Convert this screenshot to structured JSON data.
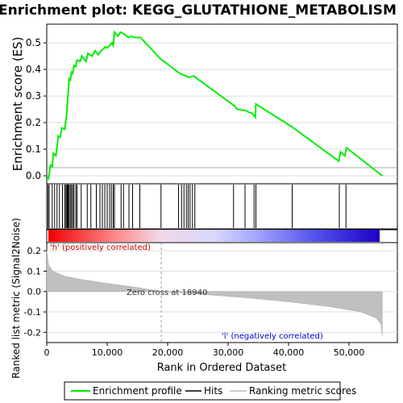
{
  "chart_data": {
    "type": "line",
    "title": "Enrichment plot: KEGG_GLUTATHIONE_METABOLISM",
    "xlabel": "Rank in Ordered Dataset",
    "xlim": [
      0,
      58000
    ],
    "x_ticks": [
      "0",
      "10,000",
      "20,000",
      "30,000",
      "40,000",
      "50,000"
    ],
    "panels": {
      "enrichment": {
        "ylabel": "Enrichment score (ES)",
        "ylim": [
          -0.03,
          0.57
        ],
        "y_ticks": [
          "0.0",
          "0.1",
          "0.2",
          "0.3",
          "0.4",
          "0.5"
        ],
        "series": [
          {
            "name": "Enrichment profile",
            "color": "#00ee00",
            "points": [
              [
                0,
                0
              ],
              [
                300,
                -0.01
              ],
              [
                600,
                0.04
              ],
              [
                900,
                0.035
              ],
              [
                1100,
                0.085
              ],
              [
                1500,
                0.075
              ],
              [
                1700,
                0.11
              ],
              [
                1900,
                0.15
              ],
              [
                2200,
                0.145
              ],
              [
                2500,
                0.18
              ],
              [
                3000,
                0.175
              ],
              [
                3100,
                0.2
              ],
              [
                3300,
                0.23
              ],
              [
                3400,
                0.27
              ],
              [
                3500,
                0.3
              ],
              [
                3600,
                0.33
              ],
              [
                3700,
                0.365
              ],
              [
                3900,
                0.36
              ],
              [
                4100,
                0.39
              ],
              [
                4300,
                0.385
              ],
              [
                4500,
                0.415
              ],
              [
                4800,
                0.41
              ],
              [
                5000,
                0.435
              ],
              [
                5500,
                0.43
              ],
              [
                5800,
                0.45
              ],
              [
                6500,
                0.43
              ],
              [
                6800,
                0.46
              ],
              [
                7500,
                0.45
              ],
              [
                8000,
                0.47
              ],
              [
                8500,
                0.455
              ],
              [
                9000,
                0.47
              ],
              [
                9300,
                0.475
              ],
              [
                9700,
                0.485
              ],
              [
                10000,
                0.48
              ],
              [
                10400,
                0.49
              ],
              [
                10800,
                0.5
              ],
              [
                11000,
                0.49
              ],
              [
                11200,
                0.54
              ],
              [
                11800,
                0.525
              ],
              [
                12200,
                0.54
              ],
              [
                13000,
                0.53
              ],
              [
                13500,
                0.52
              ],
              [
                14000,
                0.525
              ],
              [
                14500,
                0.52
              ],
              [
                15500,
                0.52
              ],
              [
                18800,
                0.44
              ],
              [
                22000,
                0.385
              ],
              [
                23500,
                0.37
              ],
              [
                24300,
                0.375
              ],
              [
                30900,
                0.265
              ],
              [
                31500,
                0.25
              ],
              [
                33000,
                0.245
              ],
              [
                33300,
                0.24
              ],
              [
                34000,
                0.235
              ],
              [
                34500,
                0.22
              ],
              [
                34600,
                0.27
              ],
              [
                40500,
                0.185
              ],
              [
                48300,
                0.055
              ],
              [
                48600,
                0.09
              ],
              [
                49300,
                0.075
              ],
              [
                49600,
                0.105
              ],
              [
                55500,
                0
              ]
            ]
          }
        ],
        "hits": [
          200,
          400,
          900,
          1300,
          1700,
          2100,
          2600,
          3000,
          3200,
          3350,
          3450,
          3550,
          3700,
          3900,
          4100,
          4300,
          4500,
          4800,
          5000,
          5700,
          6700,
          7300,
          8200,
          8800,
          9200,
          9600,
          10000,
          10400,
          10700,
          11000,
          11200,
          12300,
          12700,
          13600,
          14200,
          15400,
          18900,
          21800,
          22300,
          22700,
          23100,
          23400,
          23700,
          24100,
          24500,
          30900,
          32800,
          34300,
          34600,
          40600,
          48400,
          49500
        ],
        "zero_line": 0
      },
      "ranked_metric": {
        "ylabel": "Ranked list metric (Signal2Noise)",
        "ylim": [
          -0.25,
          0.24
        ],
        "y_ticks": [
          "0.2",
          "0.1",
          "0.0",
          "-0.1",
          "-0.2"
        ],
        "zero_cross_label": "Zero cross at 18940",
        "zero_cross_rank": 18940,
        "positive_label": "'h' (positively correlated)",
        "negative_label": "'l' (negatively correlated)",
        "fill_color": "#c0c0c0",
        "metric_curve": [
          [
            0,
            0.2
          ],
          [
            300,
            0.13
          ],
          [
            1000,
            0.1
          ],
          [
            3000,
            0.075
          ],
          [
            6000,
            0.058
          ],
          [
            10000,
            0.04
          ],
          [
            15000,
            0.02
          ],
          [
            18940,
            0
          ],
          [
            25000,
            -0.012
          ],
          [
            32000,
            -0.028
          ],
          [
            40000,
            -0.05
          ],
          [
            47000,
            -0.075
          ],
          [
            52000,
            -0.1
          ],
          [
            54500,
            -0.13
          ],
          [
            55300,
            -0.16
          ],
          [
            55500,
            -0.22
          ]
        ]
      }
    },
    "legend": {
      "placement": "bottom",
      "entries": [
        {
          "label": "Enrichment profile",
          "color": "#00ee00"
        },
        {
          "label": "Hits",
          "color": "#000000"
        },
        {
          "label": "Ranking metric scores",
          "color": "#cccccc"
        }
      ]
    },
    "colors": {
      "positive_text": "#cc0000",
      "negative_text": "#0000cc",
      "grid": "#dddddd"
    }
  }
}
